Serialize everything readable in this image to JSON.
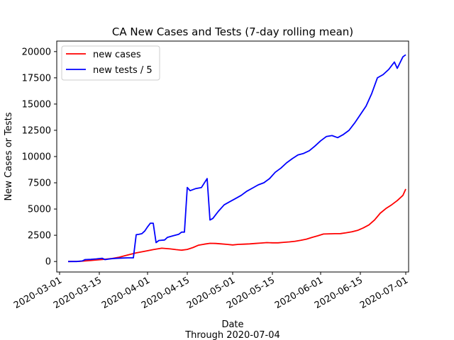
{
  "chart_data": {
    "type": "line",
    "title": "CA New Cases and Tests (7-day rolling mean)",
    "xlabel": "Date",
    "xlabel_sub": "Through 2020-07-04",
    "ylabel": "New Cases or Tests",
    "xlim": [
      "2020-02-29",
      "2020-07-02"
    ],
    "ylim": [
      -1000,
      21000
    ],
    "x_ticks": [
      "2020-03-01",
      "2020-03-15",
      "2020-04-01",
      "2020-04-15",
      "2020-05-01",
      "2020-05-15",
      "2020-06-01",
      "2020-06-15",
      "2020-07-01"
    ],
    "y_ticks": [
      0,
      2500,
      5000,
      7500,
      10000,
      12500,
      15000,
      17500,
      20000
    ],
    "y_tick_labels": [
      "0",
      "2500",
      "5000",
      "7500",
      "10000",
      "12500",
      "15000",
      "17500",
      "20000"
    ],
    "legend_position": "upper-left",
    "grid": false,
    "series": [
      {
        "name": "new cases",
        "color": "#ff0000",
        "points": [
          [
            "2020-03-04",
            0
          ],
          [
            "2020-03-08",
            15
          ],
          [
            "2020-03-10",
            50
          ],
          [
            "2020-03-13",
            120
          ],
          [
            "2020-03-16",
            190
          ],
          [
            "2020-03-19",
            270
          ],
          [
            "2020-03-22",
            410
          ],
          [
            "2020-03-25",
            620
          ],
          [
            "2020-03-28",
            820
          ],
          [
            "2020-03-31",
            980
          ],
          [
            "2020-04-03",
            1130
          ],
          [
            "2020-04-06",
            1270
          ],
          [
            "2020-04-09",
            1200
          ],
          [
            "2020-04-11",
            1130
          ],
          [
            "2020-04-13",
            1080
          ],
          [
            "2020-04-15",
            1150
          ],
          [
            "2020-04-17",
            1330
          ],
          [
            "2020-04-19",
            1560
          ],
          [
            "2020-04-21",
            1650
          ],
          [
            "2020-04-23",
            1730
          ],
          [
            "2020-04-25",
            1720
          ],
          [
            "2020-04-27",
            1680
          ],
          [
            "2020-04-29",
            1630
          ],
          [
            "2020-05-01",
            1580
          ],
          [
            "2020-05-03",
            1630
          ],
          [
            "2020-05-05",
            1650
          ],
          [
            "2020-05-07",
            1680
          ],
          [
            "2020-05-09",
            1720
          ],
          [
            "2020-05-11",
            1760
          ],
          [
            "2020-05-13",
            1800
          ],
          [
            "2020-05-15",
            1780
          ],
          [
            "2020-05-17",
            1780
          ],
          [
            "2020-05-19",
            1830
          ],
          [
            "2020-05-21",
            1870
          ],
          [
            "2020-05-23",
            1930
          ],
          [
            "2020-05-25",
            2020
          ],
          [
            "2020-05-27",
            2130
          ],
          [
            "2020-05-29",
            2300
          ],
          [
            "2020-05-31",
            2450
          ],
          [
            "2020-06-02",
            2620
          ],
          [
            "2020-06-04",
            2640
          ],
          [
            "2020-06-06",
            2650
          ],
          [
            "2020-06-08",
            2660
          ],
          [
            "2020-06-10",
            2740
          ],
          [
            "2020-06-12",
            2830
          ],
          [
            "2020-06-14",
            2960
          ],
          [
            "2020-06-16",
            3200
          ],
          [
            "2020-06-18",
            3480
          ],
          [
            "2020-06-20",
            3950
          ],
          [
            "2020-06-22",
            4600
          ],
          [
            "2020-06-24",
            5050
          ],
          [
            "2020-06-26",
            5400
          ],
          [
            "2020-06-28",
            5800
          ],
          [
            "2020-06-30",
            6300
          ],
          [
            "2020-07-01",
            6900
          ]
        ]
      },
      {
        "name": "new tests / 5",
        "color": "#0000ff",
        "points": [
          [
            "2020-03-04",
            0
          ],
          [
            "2020-03-07",
            0
          ],
          [
            "2020-03-09",
            50
          ],
          [
            "2020-03-10",
            180
          ],
          [
            "2020-03-12",
            200
          ],
          [
            "2020-03-14",
            250
          ],
          [
            "2020-03-16",
            310
          ],
          [
            "2020-03-17",
            180
          ],
          [
            "2020-03-19",
            260
          ],
          [
            "2020-03-21",
            300
          ],
          [
            "2020-03-23",
            330
          ],
          [
            "2020-03-25",
            350
          ],
          [
            "2020-03-27",
            350
          ],
          [
            "2020-03-28",
            2550
          ],
          [
            "2020-03-29",
            2600
          ],
          [
            "2020-03-30",
            2650
          ],
          [
            "2020-03-31",
            2900
          ],
          [
            "2020-04-01",
            3300
          ],
          [
            "2020-04-02",
            3650
          ],
          [
            "2020-04-03",
            3650
          ],
          [
            "2020-04-04",
            1800
          ],
          [
            "2020-04-05",
            2000
          ],
          [
            "2020-04-07",
            2050
          ],
          [
            "2020-04-08",
            2300
          ],
          [
            "2020-04-10",
            2450
          ],
          [
            "2020-04-12",
            2600
          ],
          [
            "2020-04-13",
            2800
          ],
          [
            "2020-04-14",
            2800
          ],
          [
            "2020-04-15",
            7050
          ],
          [
            "2020-04-16",
            6750
          ],
          [
            "2020-04-18",
            6950
          ],
          [
            "2020-04-20",
            7050
          ],
          [
            "2020-04-22",
            7900
          ],
          [
            "2020-04-23",
            3950
          ],
          [
            "2020-04-24",
            4100
          ],
          [
            "2020-04-26",
            4800
          ],
          [
            "2020-04-28",
            5400
          ],
          [
            "2020-04-30",
            5700
          ],
          [
            "2020-05-02",
            6000
          ],
          [
            "2020-05-04",
            6300
          ],
          [
            "2020-05-06",
            6700
          ],
          [
            "2020-05-08",
            7000
          ],
          [
            "2020-05-10",
            7300
          ],
          [
            "2020-05-12",
            7500
          ],
          [
            "2020-05-14",
            7900
          ],
          [
            "2020-05-16",
            8500
          ],
          [
            "2020-05-18",
            8900
          ],
          [
            "2020-05-20",
            9400
          ],
          [
            "2020-05-22",
            9800
          ],
          [
            "2020-05-24",
            10150
          ],
          [
            "2020-05-26",
            10300
          ],
          [
            "2020-05-28",
            10550
          ],
          [
            "2020-05-30",
            11000
          ],
          [
            "2020-06-01",
            11500
          ],
          [
            "2020-06-03",
            11900
          ],
          [
            "2020-06-05",
            12000
          ],
          [
            "2020-06-07",
            11800
          ],
          [
            "2020-06-09",
            12100
          ],
          [
            "2020-06-11",
            12500
          ],
          [
            "2020-06-13",
            13200
          ],
          [
            "2020-06-15",
            14000
          ],
          [
            "2020-06-17",
            14800
          ],
          [
            "2020-06-19",
            16000
          ],
          [
            "2020-06-21",
            17500
          ],
          [
            "2020-06-23",
            17800
          ],
          [
            "2020-06-25",
            18300
          ],
          [
            "2020-06-27",
            19000
          ],
          [
            "2020-06-28",
            18400
          ],
          [
            "2020-06-30",
            19500
          ],
          [
            "2020-07-01",
            19700
          ]
        ]
      }
    ]
  }
}
